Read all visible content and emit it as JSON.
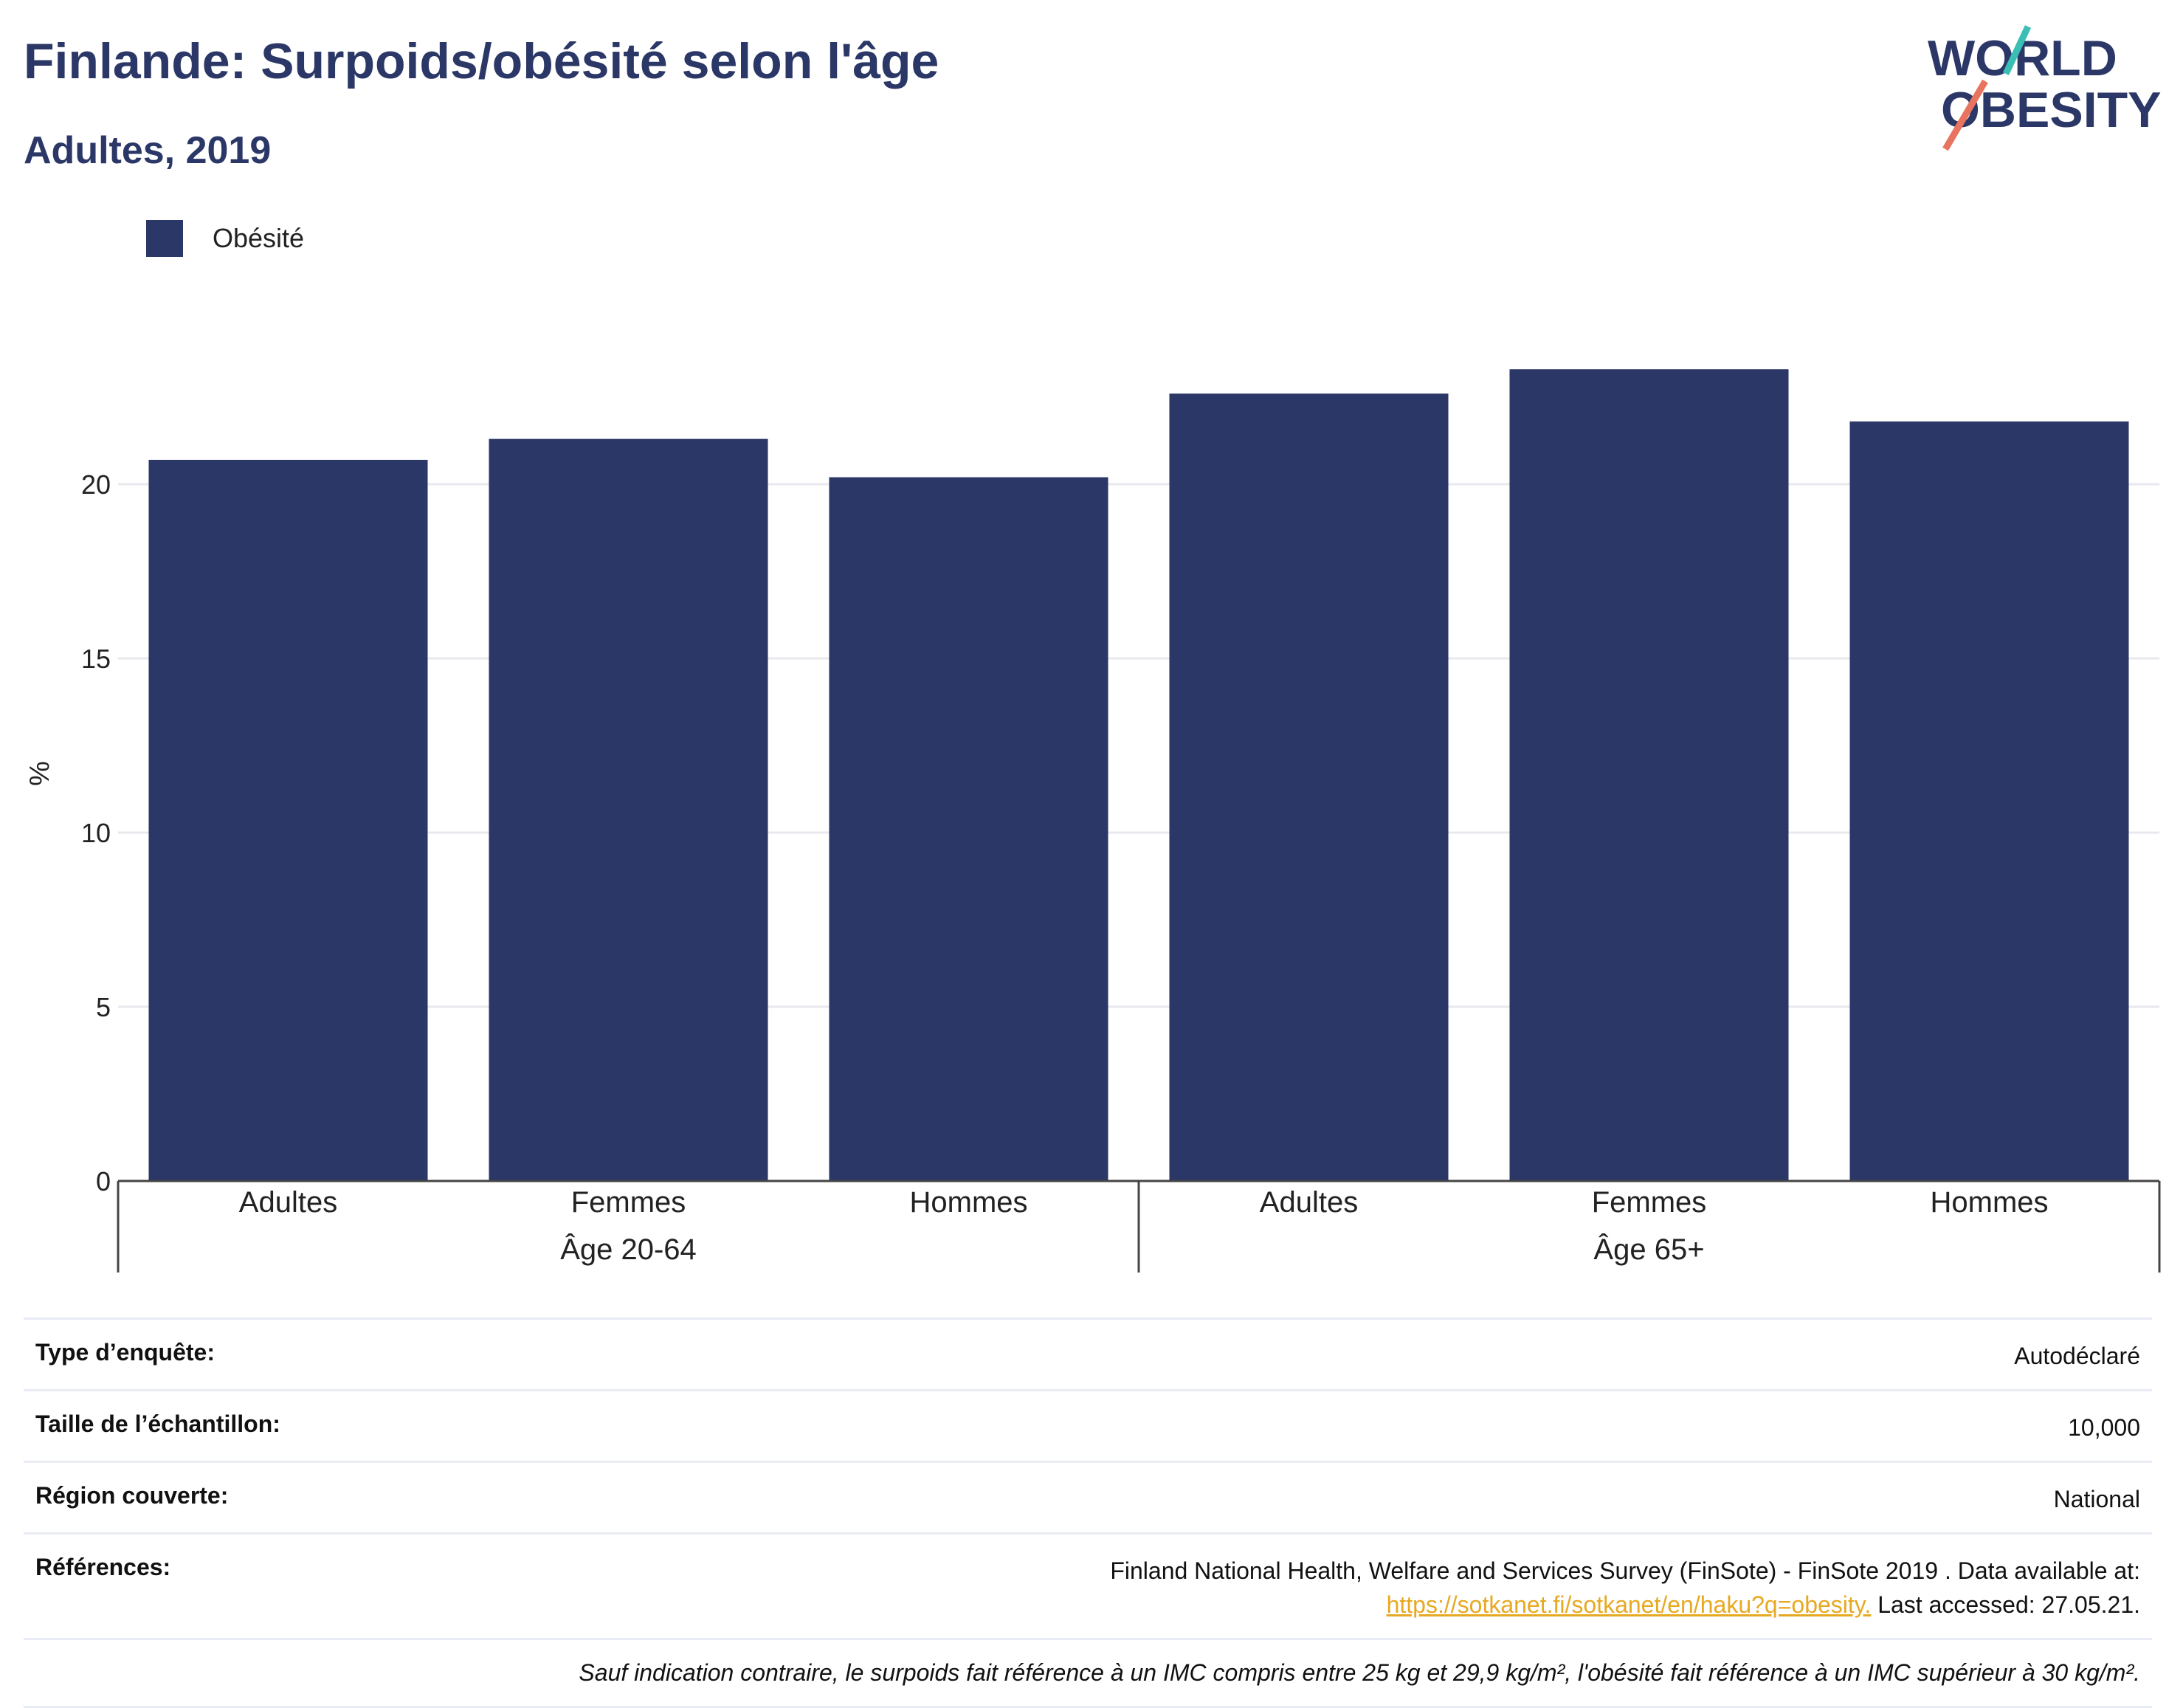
{
  "header": {
    "title": "Finlande: Surpoids/obésité selon l'âge",
    "subtitle": "Adultes, 2019"
  },
  "logo": {
    "line1": "WORLD",
    "line2": "OBESITY",
    "colors": {
      "text": "#2b3766",
      "slash_teal": "#3bbfb5",
      "slash_coral": "#e8745f"
    }
  },
  "legend": {
    "label": "Obésité",
    "color": "#2b3766"
  },
  "chart_data": {
    "type": "bar",
    "categories": [
      "Adultes",
      "Femmes",
      "Hommes",
      "Adultes",
      "Femmes",
      "Hommes"
    ],
    "groups": [
      {
        "label": "Âge 20-64",
        "categories": [
          "Adultes",
          "Femmes",
          "Hommes"
        ]
      },
      {
        "label": "Âge 65+",
        "categories": [
          "Adultes",
          "Femmes",
          "Hommes"
        ]
      }
    ],
    "series": [
      {
        "name": "Obésité",
        "values": [
          20.7,
          21.3,
          20.2,
          22.6,
          23.3,
          21.8
        ],
        "color": "#2b3766"
      }
    ],
    "ylabel": "%",
    "ylim": [
      0,
      25
    ],
    "yticks": [
      0,
      5,
      10,
      15,
      20
    ],
    "grid": true
  },
  "table": {
    "rows": [
      {
        "label": "Type d’enquête:",
        "value": "Autodéclaré"
      },
      {
        "label": "Taille de l’échantillon:",
        "value": "10,000"
      },
      {
        "label": "Région couverte:",
        "value": "National"
      }
    ],
    "references": {
      "label": "Références:",
      "text": "Finland National Health, Welfare and Services Survey (FinSote) - FinSote 2019 . Data available at:",
      "link": "https://sotkanet.fi/sotkanet/en/haku?q=obesity.",
      "suffix": "Last accessed: 27.05.21."
    },
    "note": "Sauf indication contraire, le surpoids fait référence à un IMC compris entre 25 kg et 29,9 kg/m², l'obésité fait référence à un IMC supérieur à 30 kg/m²."
  }
}
